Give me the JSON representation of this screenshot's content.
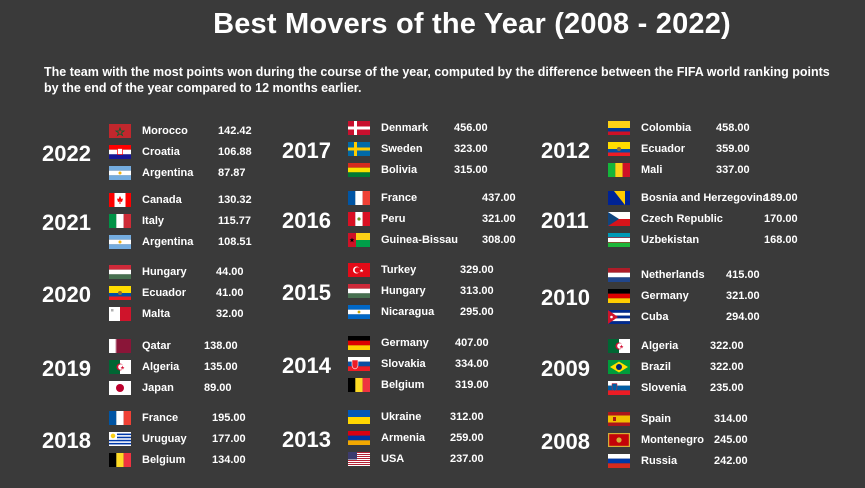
{
  "title": "Best Movers of the Year (2008 - 2022)",
  "subtitle": "The team with the most points won during the course of the year, computed by the difference between the FIFA world ranking points by the end of the year compared to 12 months earlier.",
  "years": [
    {
      "year": "2022",
      "teams": [
        {
          "country": "Morocco",
          "points": "142.42",
          "flag": "morocco"
        },
        {
          "country": "Croatia",
          "points": "106.88",
          "flag": "croatia"
        },
        {
          "country": "Argentina",
          "points": "87.87",
          "flag": "argentina"
        }
      ]
    },
    {
      "year": "2021",
      "teams": [
        {
          "country": "Canada",
          "points": "130.32",
          "flag": "canada"
        },
        {
          "country": "Italy",
          "points": "115.77",
          "flag": "italy"
        },
        {
          "country": "Argentina",
          "points": "108.51",
          "flag": "argentina"
        }
      ]
    },
    {
      "year": "2020",
      "teams": [
        {
          "country": "Hungary",
          "points": "44.00",
          "flag": "hungary"
        },
        {
          "country": "Ecuador",
          "points": "41.00",
          "flag": "ecuador"
        },
        {
          "country": "Malta",
          "points": "32.00",
          "flag": "malta"
        }
      ]
    },
    {
      "year": "2019",
      "teams": [
        {
          "country": "Qatar",
          "points": "138.00",
          "flag": "qatar"
        },
        {
          "country": "Algeria",
          "points": "135.00",
          "flag": "algeria"
        },
        {
          "country": "Japan",
          "points": "89.00",
          "flag": "japan"
        }
      ]
    },
    {
      "year": "2018",
      "teams": [
        {
          "country": "France",
          "points": "195.00",
          "flag": "france"
        },
        {
          "country": "Uruguay",
          "points": "177.00",
          "flag": "uruguay"
        },
        {
          "country": "Belgium",
          "points": "134.00",
          "flag": "belgium"
        }
      ]
    },
    {
      "year": "2017",
      "teams": [
        {
          "country": "Denmark",
          "points": "456.00",
          "flag": "denmark"
        },
        {
          "country": "Sweden",
          "points": "323.00",
          "flag": "sweden"
        },
        {
          "country": "Bolivia",
          "points": "315.00",
          "flag": "bolivia"
        }
      ]
    },
    {
      "year": "2016",
      "teams": [
        {
          "country": "France",
          "points": "437.00",
          "flag": "france"
        },
        {
          "country": "Peru",
          "points": "321.00",
          "flag": "peru"
        },
        {
          "country": "Guinea-Bissau",
          "points": "308.00",
          "flag": "guinea-bissau"
        }
      ]
    },
    {
      "year": "2015",
      "teams": [
        {
          "country": "Turkey",
          "points": "329.00",
          "flag": "turkey"
        },
        {
          "country": "Hungary",
          "points": "313.00",
          "flag": "hungary"
        },
        {
          "country": "Nicaragua",
          "points": "295.00",
          "flag": "nicaragua"
        }
      ]
    },
    {
      "year": "2014",
      "teams": [
        {
          "country": "Germany",
          "points": "407.00",
          "flag": "germany"
        },
        {
          "country": "Slovakia",
          "points": "334.00",
          "flag": "slovakia"
        },
        {
          "country": "Belgium",
          "points": "319.00",
          "flag": "belgium"
        }
      ]
    },
    {
      "year": "2013",
      "teams": [
        {
          "country": "Ukraine",
          "points": "312.00",
          "flag": "ukraine"
        },
        {
          "country": "Armenia",
          "points": "259.00",
          "flag": "armenia"
        },
        {
          "country": "USA",
          "points": "237.00",
          "flag": "usa"
        }
      ]
    },
    {
      "year": "2012",
      "teams": [
        {
          "country": "Colombia",
          "points": "458.00",
          "flag": "colombia"
        },
        {
          "country": "Ecuador",
          "points": "359.00",
          "flag": "ecuador"
        },
        {
          "country": "Mali",
          "points": "337.00",
          "flag": "mali"
        }
      ]
    },
    {
      "year": "2011",
      "teams": [
        {
          "country": "Bosnia and Herzegovina",
          "points": "189.00",
          "flag": "bosnia"
        },
        {
          "country": "Czech Republic",
          "points": "170.00",
          "flag": "czech"
        },
        {
          "country": "Uzbekistan",
          "points": "168.00",
          "flag": "uzbekistan"
        }
      ]
    },
    {
      "year": "2010",
      "teams": [
        {
          "country": "Netherlands",
          "points": "415.00",
          "flag": "netherlands"
        },
        {
          "country": "Germany",
          "points": "321.00",
          "flag": "germany"
        },
        {
          "country": "Cuba",
          "points": "294.00",
          "flag": "cuba"
        }
      ]
    },
    {
      "year": "2009",
      "teams": [
        {
          "country": "Algeria",
          "points": "322.00",
          "flag": "algeria"
        },
        {
          "country": "Brazil",
          "points": "322.00",
          "flag": "brazil"
        },
        {
          "country": "Slovenia",
          "points": "235.00",
          "flag": "slovenia"
        }
      ]
    },
    {
      "year": "2008",
      "teams": [
        {
          "country": "Spain",
          "points": "314.00",
          "flag": "spain"
        },
        {
          "country": "Montenegro",
          "points": "245.00",
          "flag": "montenegro"
        },
        {
          "country": "Russia",
          "points": "242.00",
          "flag": "russia"
        }
      ]
    }
  ]
}
